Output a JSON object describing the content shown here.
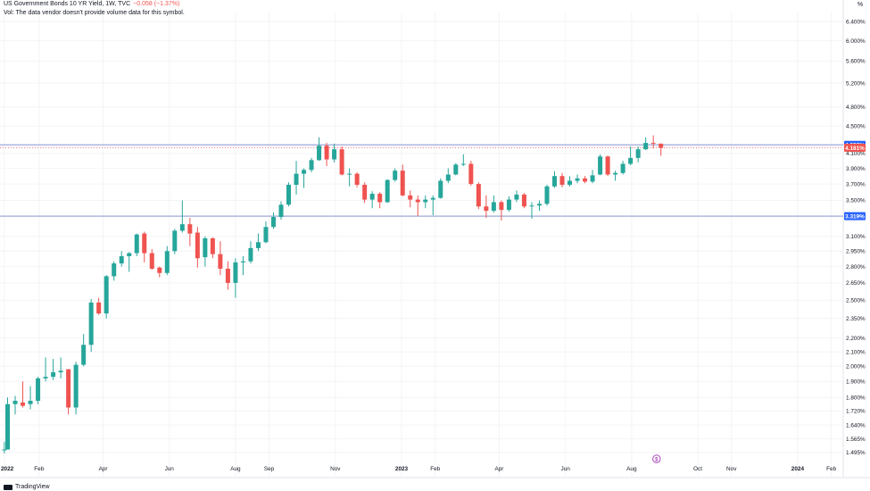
{
  "header": {
    "title": "US Government Bonds 10 YR Yield, 1W, TVC",
    "change": "−0.058 (−1.37%)",
    "volume_note": "Vol: The data vendor doesn't provide volume data for this symbol."
  },
  "unit_label": "%",
  "footer": {
    "brand": "TradingView"
  },
  "colors": {
    "up": "#26a69a",
    "down": "#ef5350",
    "level_line": "#9fa8da",
    "level_badge": "#2962ff",
    "last_badge": "#ef5350"
  },
  "chart_data": {
    "type": "candlestick",
    "scale": "log",
    "ylim": [
      1.45,
      6.6
    ],
    "x_range": [
      "2021-12-27",
      "2024-02-12"
    ],
    "y_ticks": [
      "6.400%",
      "6.000%",
      "5.600%",
      "5.200%",
      "4.800%",
      "4.500%",
      "4.100%",
      "3.900%",
      "3.700%",
      "3.500%",
      "3.100%",
      "2.950%",
      "2.800%",
      "2.650%",
      "2.500%",
      "2.350%",
      "2.200%",
      "2.100%",
      "2.000%",
      "1.900%",
      "1.800%",
      "1.720%",
      "1.640%",
      "1.565%",
      "1.495%"
    ],
    "x_ticks": [
      {
        "label": "2022",
        "date": "2021-12-31",
        "bold": true
      },
      {
        "label": "Feb",
        "date": "2022-02-01",
        "bold": false
      },
      {
        "label": "Apr",
        "date": "2022-04-01",
        "bold": false
      },
      {
        "label": "Jun",
        "date": "2022-06-01",
        "bold": false
      },
      {
        "label": "Aug",
        "date": "2022-08-01",
        "bold": false
      },
      {
        "label": "Sep",
        "date": "2022-09-01",
        "bold": false
      },
      {
        "label": "Nov",
        "date": "2022-11-01",
        "bold": false
      },
      {
        "label": "2023",
        "date": "2023-01-01",
        "bold": true
      },
      {
        "label": "Feb",
        "date": "2023-02-01",
        "bold": false
      },
      {
        "label": "Apr",
        "date": "2023-04-01",
        "bold": false
      },
      {
        "label": "Jun",
        "date": "2023-06-01",
        "bold": false
      },
      {
        "label": "Aug",
        "date": "2023-08-01",
        "bold": false
      },
      {
        "label": "Oct",
        "date": "2023-10-01",
        "bold": false
      },
      {
        "label": "Nov",
        "date": "2023-11-01",
        "bold": false
      },
      {
        "label": "2024",
        "date": "2024-01-01",
        "bold": true
      },
      {
        "label": "Feb",
        "date": "2024-02-01",
        "bold": false
      }
    ],
    "levels": [
      {
        "value": 4.222,
        "label": "4.222%"
      },
      {
        "value": 3.319,
        "label": "3.319%"
      }
    ],
    "last_price": {
      "value": 4.181,
      "label": "4.181%"
    },
    "candles": [
      {
        "date": "2021-12-31",
        "o": 1.51,
        "h": 1.55,
        "l": 1.49,
        "c": 1.51
      },
      {
        "date": "2022-01-03",
        "o": 1.51,
        "h": 1.8,
        "l": 1.51,
        "c": 1.76
      },
      {
        "date": "2022-01-10",
        "o": 1.76,
        "h": 1.81,
        "l": 1.7,
        "c": 1.78
      },
      {
        "date": "2022-01-17",
        "o": 1.77,
        "h": 1.9,
        "l": 1.74,
        "c": 1.75
      },
      {
        "date": "2022-01-24",
        "o": 1.76,
        "h": 1.87,
        "l": 1.73,
        "c": 1.78
      },
      {
        "date": "2022-01-31",
        "o": 1.78,
        "h": 1.93,
        "l": 1.76,
        "c": 1.92
      },
      {
        "date": "2022-02-07",
        "o": 1.92,
        "h": 2.06,
        "l": 1.9,
        "c": 1.93
      },
      {
        "date": "2022-02-14",
        "o": 1.93,
        "h": 2.05,
        "l": 1.91,
        "c": 1.96
      },
      {
        "date": "2022-02-21",
        "o": 1.96,
        "h": 2.06,
        "l": 1.92,
        "c": 1.97
      },
      {
        "date": "2022-02-28",
        "o": 1.98,
        "h": 1.98,
        "l": 1.7,
        "c": 1.74
      },
      {
        "date": "2022-03-07",
        "o": 1.74,
        "h": 2.03,
        "l": 1.7,
        "c": 2.01
      },
      {
        "date": "2022-03-14",
        "o": 2.01,
        "h": 2.23,
        "l": 2.0,
        "c": 2.15
      },
      {
        "date": "2022-03-21",
        "o": 2.15,
        "h": 2.51,
        "l": 2.1,
        "c": 2.48
      },
      {
        "date": "2022-03-28",
        "o": 2.48,
        "h": 2.52,
        "l": 2.38,
        "c": 2.39
      },
      {
        "date": "2022-04-04",
        "o": 2.39,
        "h": 2.72,
        "l": 2.35,
        "c": 2.71
      },
      {
        "date": "2022-04-11",
        "o": 2.71,
        "h": 2.85,
        "l": 2.67,
        "c": 2.83
      },
      {
        "date": "2022-04-18",
        "o": 2.83,
        "h": 2.95,
        "l": 2.8,
        "c": 2.9
      },
      {
        "date": "2022-04-25",
        "o": 2.9,
        "h": 2.94,
        "l": 2.75,
        "c": 2.93
      },
      {
        "date": "2022-05-02",
        "o": 2.93,
        "h": 3.13,
        "l": 2.9,
        "c": 3.12
      },
      {
        "date": "2022-05-09",
        "o": 3.13,
        "h": 3.15,
        "l": 2.84,
        "c": 2.93
      },
      {
        "date": "2022-05-16",
        "o": 2.93,
        "h": 2.97,
        "l": 2.77,
        "c": 2.78
      },
      {
        "date": "2022-05-23",
        "o": 2.79,
        "h": 2.8,
        "l": 2.7,
        "c": 2.74
      },
      {
        "date": "2022-05-30",
        "o": 2.74,
        "h": 3.0,
        "l": 2.72,
        "c": 2.95
      },
      {
        "date": "2022-06-06",
        "o": 2.95,
        "h": 3.18,
        "l": 2.92,
        "c": 3.16
      },
      {
        "date": "2022-06-13",
        "o": 3.16,
        "h": 3.5,
        "l": 3.14,
        "c": 3.23
      },
      {
        "date": "2022-06-20",
        "o": 3.23,
        "h": 3.3,
        "l": 3.0,
        "c": 3.13
      },
      {
        "date": "2022-06-27",
        "o": 3.14,
        "h": 3.2,
        "l": 2.79,
        "c": 2.88
      },
      {
        "date": "2022-07-04",
        "o": 2.89,
        "h": 3.1,
        "l": 2.8,
        "c": 3.08
      },
      {
        "date": "2022-07-11",
        "o": 3.08,
        "h": 3.09,
        "l": 2.88,
        "c": 2.92
      },
      {
        "date": "2022-07-18",
        "o": 2.92,
        "h": 3.05,
        "l": 2.72,
        "c": 2.78
      },
      {
        "date": "2022-07-25",
        "o": 2.78,
        "h": 2.85,
        "l": 2.59,
        "c": 2.65
      },
      {
        "date": "2022-08-01",
        "o": 2.65,
        "h": 2.88,
        "l": 2.52,
        "c": 2.84
      },
      {
        "date": "2022-08-08",
        "o": 2.84,
        "h": 2.9,
        "l": 2.72,
        "c": 2.85
      },
      {
        "date": "2022-08-15",
        "o": 2.85,
        "h": 3.05,
        "l": 2.83,
        "c": 2.98
      },
      {
        "date": "2022-08-22",
        "o": 2.98,
        "h": 3.13,
        "l": 2.95,
        "c": 3.04
      },
      {
        "date": "2022-08-29",
        "o": 3.04,
        "h": 3.26,
        "l": 3.03,
        "c": 3.2
      },
      {
        "date": "2022-09-05",
        "o": 3.2,
        "h": 3.36,
        "l": 3.18,
        "c": 3.31
      },
      {
        "date": "2022-09-12",
        "o": 3.31,
        "h": 3.49,
        "l": 3.28,
        "c": 3.45
      },
      {
        "date": "2022-09-19",
        "o": 3.45,
        "h": 3.72,
        "l": 3.43,
        "c": 3.69
      },
      {
        "date": "2022-09-26",
        "o": 3.69,
        "h": 4.0,
        "l": 3.57,
        "c": 3.83
      },
      {
        "date": "2022-10-03",
        "o": 3.83,
        "h": 3.9,
        "l": 3.65,
        "c": 3.88
      },
      {
        "date": "2022-10-10",
        "o": 3.88,
        "h": 4.04,
        "l": 3.85,
        "c": 4.01
      },
      {
        "date": "2022-10-17",
        "o": 4.01,
        "h": 4.33,
        "l": 4.0,
        "c": 4.21
      },
      {
        "date": "2022-10-24",
        "o": 4.21,
        "h": 4.25,
        "l": 3.93,
        "c": 4.02
      },
      {
        "date": "2022-10-31",
        "o": 4.02,
        "h": 4.24,
        "l": 3.98,
        "c": 4.16
      },
      {
        "date": "2022-11-07",
        "o": 4.16,
        "h": 4.2,
        "l": 3.81,
        "c": 3.82
      },
      {
        "date": "2022-11-14",
        "o": 3.82,
        "h": 3.9,
        "l": 3.67,
        "c": 3.83
      },
      {
        "date": "2022-11-21",
        "o": 3.83,
        "h": 3.85,
        "l": 3.66,
        "c": 3.69
      },
      {
        "date": "2022-11-28",
        "o": 3.69,
        "h": 3.72,
        "l": 3.47,
        "c": 3.51
      },
      {
        "date": "2022-12-05",
        "o": 3.51,
        "h": 3.61,
        "l": 3.41,
        "c": 3.58
      },
      {
        "date": "2022-12-12",
        "o": 3.58,
        "h": 3.6,
        "l": 3.41,
        "c": 3.48
      },
      {
        "date": "2022-12-19",
        "o": 3.48,
        "h": 3.76,
        "l": 3.47,
        "c": 3.75
      },
      {
        "date": "2022-12-26",
        "o": 3.75,
        "h": 3.9,
        "l": 3.73,
        "c": 3.87
      },
      {
        "date": "2023-01-02",
        "o": 3.87,
        "h": 3.95,
        "l": 3.55,
        "c": 3.56
      },
      {
        "date": "2023-01-09",
        "o": 3.56,
        "h": 3.62,
        "l": 3.42,
        "c": 3.51
      },
      {
        "date": "2023-01-16",
        "o": 3.51,
        "h": 3.56,
        "l": 3.32,
        "c": 3.48
      },
      {
        "date": "2023-01-23",
        "o": 3.48,
        "h": 3.56,
        "l": 3.41,
        "c": 3.51
      },
      {
        "date": "2023-01-30",
        "o": 3.51,
        "h": 3.56,
        "l": 3.33,
        "c": 3.53
      },
      {
        "date": "2023-02-06",
        "o": 3.53,
        "h": 3.77,
        "l": 3.52,
        "c": 3.74
      },
      {
        "date": "2023-02-13",
        "o": 3.74,
        "h": 3.9,
        "l": 3.71,
        "c": 3.82
      },
      {
        "date": "2023-02-20",
        "o": 3.82,
        "h": 3.97,
        "l": 3.81,
        "c": 3.95
      },
      {
        "date": "2023-02-27",
        "o": 3.95,
        "h": 4.09,
        "l": 3.93,
        "c": 3.96
      },
      {
        "date": "2023-03-06",
        "o": 3.96,
        "h": 4.0,
        "l": 3.68,
        "c": 3.7
      },
      {
        "date": "2023-03-13",
        "o": 3.7,
        "h": 3.72,
        "l": 3.4,
        "c": 3.43
      },
      {
        "date": "2023-03-20",
        "o": 3.43,
        "h": 3.56,
        "l": 3.3,
        "c": 3.38
      },
      {
        "date": "2023-03-27",
        "o": 3.38,
        "h": 3.56,
        "l": 3.36,
        "c": 3.48
      },
      {
        "date": "2023-04-03",
        "o": 3.48,
        "h": 3.5,
        "l": 3.27,
        "c": 3.39
      },
      {
        "date": "2023-04-10",
        "o": 3.39,
        "h": 3.55,
        "l": 3.37,
        "c": 3.51
      },
      {
        "date": "2023-04-17",
        "o": 3.51,
        "h": 3.62,
        "l": 3.48,
        "c": 3.57
      },
      {
        "date": "2023-04-24",
        "o": 3.57,
        "h": 3.59,
        "l": 3.41,
        "c": 3.43
      },
      {
        "date": "2023-05-01",
        "o": 3.43,
        "h": 3.48,
        "l": 3.29,
        "c": 3.44
      },
      {
        "date": "2023-05-08",
        "o": 3.44,
        "h": 3.5,
        "l": 3.38,
        "c": 3.46
      },
      {
        "date": "2023-05-15",
        "o": 3.46,
        "h": 3.69,
        "l": 3.44,
        "c": 3.67
      },
      {
        "date": "2023-05-22",
        "o": 3.67,
        "h": 3.86,
        "l": 3.65,
        "c": 3.8
      },
      {
        "date": "2023-05-29",
        "o": 3.8,
        "h": 3.84,
        "l": 3.66,
        "c": 3.69
      },
      {
        "date": "2023-06-05",
        "o": 3.69,
        "h": 3.8,
        "l": 3.67,
        "c": 3.74
      },
      {
        "date": "2023-06-12",
        "o": 3.74,
        "h": 3.82,
        "l": 3.71,
        "c": 3.77
      },
      {
        "date": "2023-06-19",
        "o": 3.77,
        "h": 3.8,
        "l": 3.71,
        "c": 3.73
      },
      {
        "date": "2023-06-26",
        "o": 3.73,
        "h": 3.88,
        "l": 3.71,
        "c": 3.81
      },
      {
        "date": "2023-07-03",
        "o": 3.82,
        "h": 4.09,
        "l": 3.81,
        "c": 4.06
      },
      {
        "date": "2023-07-10",
        "o": 4.06,
        "h": 4.07,
        "l": 3.8,
        "c": 3.82
      },
      {
        "date": "2023-07-17",
        "o": 3.82,
        "h": 3.87,
        "l": 3.74,
        "c": 3.84
      },
      {
        "date": "2023-07-24",
        "o": 3.84,
        "h": 4.0,
        "l": 3.82,
        "c": 3.96
      },
      {
        "date": "2023-07-31",
        "o": 3.96,
        "h": 4.2,
        "l": 3.94,
        "c": 4.04
      },
      {
        "date": "2023-08-07",
        "o": 4.04,
        "h": 4.2,
        "l": 3.98,
        "c": 4.16
      },
      {
        "date": "2023-08-14",
        "o": 4.16,
        "h": 4.33,
        "l": 4.15,
        "c": 4.25
      },
      {
        "date": "2023-08-21",
        "o": 4.25,
        "h": 4.36,
        "l": 4.17,
        "c": 4.24
      },
      {
        "date": "2023-08-28",
        "o": 4.24,
        "h": 4.24,
        "l": 4.07,
        "c": 4.18
      }
    ]
  }
}
